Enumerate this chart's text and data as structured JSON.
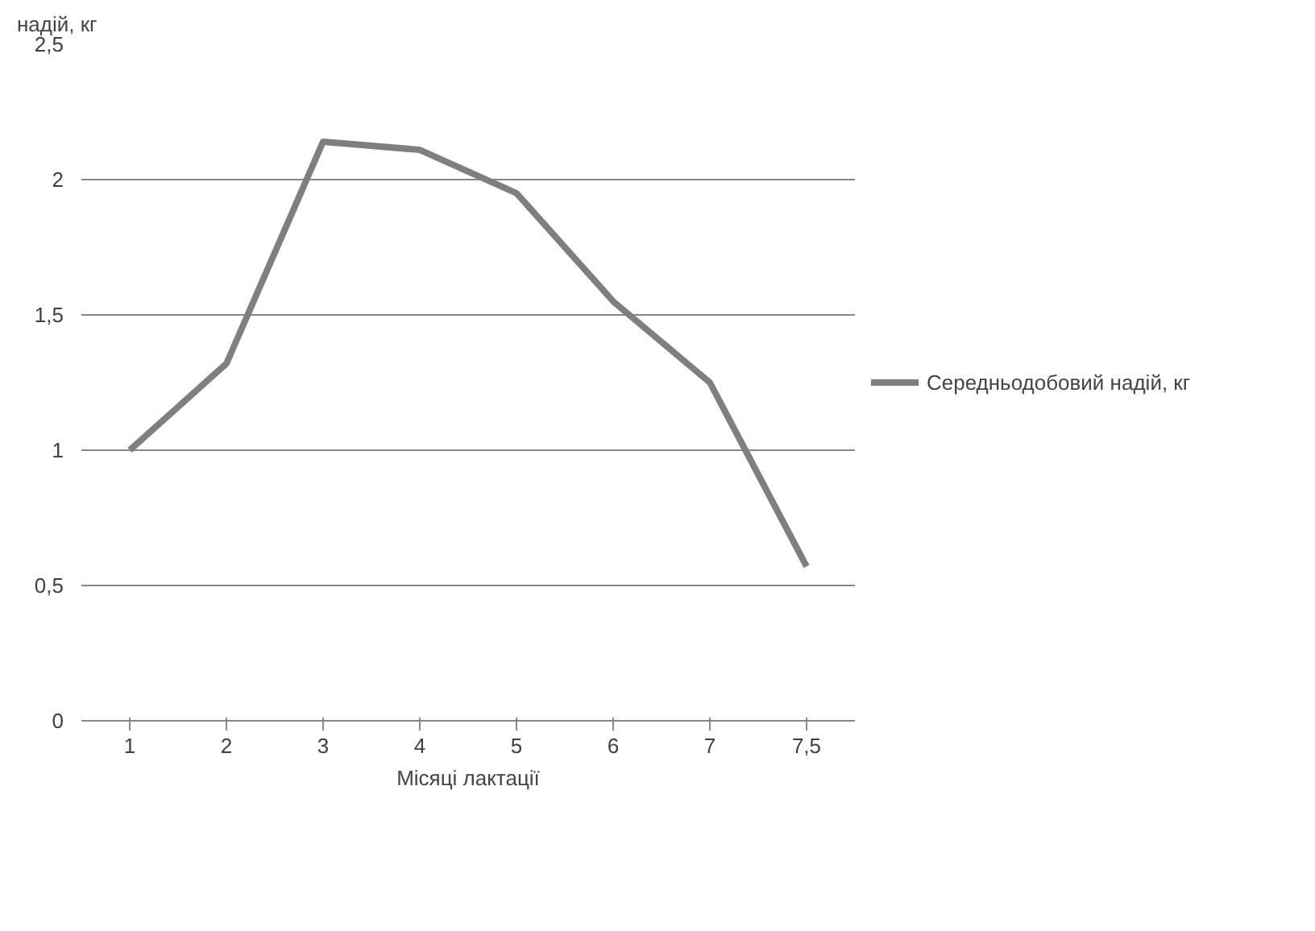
{
  "chart_data": {
    "type": "line",
    "ylabel": "надій, кг",
    "xlabel": "Місяці лактації",
    "categories": [
      "1",
      "2",
      "3",
      "4",
      "5",
      "6",
      "7",
      "7,5"
    ],
    "series": [
      {
        "name": "Середньодобовий надій, кг",
        "color": "#7f7f7f",
        "values": [
          1.0,
          1.32,
          2.14,
          2.11,
          1.95,
          1.55,
          1.25,
          0.57
        ]
      }
    ],
    "ylim": [
      0,
      2.5
    ],
    "yticks": [
      0,
      {
        "value": 0.5,
        "label": "0,5"
      },
      1,
      {
        "value": 1.5,
        "label": "1,5"
      },
      2,
      {
        "value": 2.5,
        "label": "2,5"
      }
    ],
    "grid": "y",
    "legend": "right",
    "marker": "none",
    "line_style": "solid"
  }
}
